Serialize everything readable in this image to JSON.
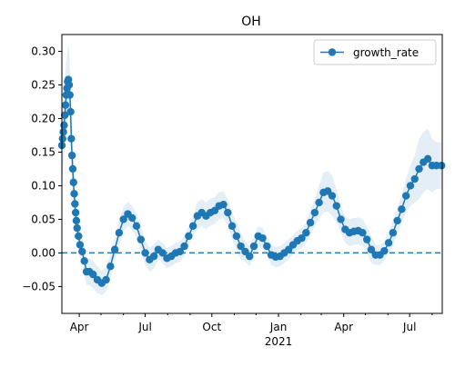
{
  "chart_data": {
    "type": "line",
    "title": "OH",
    "xlabel": "",
    "ylabel": "",
    "x_start": "2020-03-08",
    "x_end": "2021-08-15",
    "ylim": [
      -0.09,
      0.325
    ],
    "y_ticks": [
      -0.05,
      0.0,
      0.05,
      0.1,
      0.15,
      0.2,
      0.25,
      0.3
    ],
    "y_tick_labels": [
      "−0.05",
      "0.00",
      "0.05",
      "0.10",
      "0.15",
      "0.20",
      "0.25",
      "0.30"
    ],
    "x_major_ticks": [
      {
        "date": "2020-04-01",
        "label": "Apr"
      },
      {
        "date": "2020-07-01",
        "label": "Jul"
      },
      {
        "date": "2020-10-01",
        "label": "Oct"
      },
      {
        "date": "2021-01-01",
        "label": "Jan"
      },
      {
        "date": "2021-04-01",
        "label": "Apr"
      },
      {
        "date": "2021-07-01",
        "label": "Jul"
      }
    ],
    "x_year_label": {
      "date": "2021-01-01",
      "label": "2021"
    },
    "x_minor_ticks": [
      "2020-05-01",
      "2020-06-01",
      "2020-08-01",
      "2020-09-01",
      "2020-11-01",
      "2020-12-01",
      "2021-02-01",
      "2021-03-01",
      "2021-05-01",
      "2021-06-01",
      "2021-08-01"
    ],
    "reference_line": {
      "y": 0.0,
      "style": "dashed",
      "color": "#1f77b4"
    },
    "band_color": "#1f77b4",
    "legend": {
      "position": "top-right"
    },
    "series": [
      {
        "name": "growth_rate",
        "color": "#1f77b4",
        "marker": "circle",
        "x": [
          "2020-03-08",
          "2020-03-09",
          "2020-03-10",
          "2020-03-11",
          "2020-03-12",
          "2020-03-13",
          "2020-03-14",
          "2020-03-15",
          "2020-03-16",
          "2020-03-17",
          "2020-03-18",
          "2020-03-19",
          "2020-03-20",
          "2020-03-21",
          "2020-03-22",
          "2020-03-23",
          "2020-03-24",
          "2020-03-25",
          "2020-03-26",
          "2020-03-27",
          "2020-03-28",
          "2020-03-29",
          "2020-03-31",
          "2020-04-02",
          "2020-04-05",
          "2020-04-08",
          "2020-04-11",
          "2020-04-15",
          "2020-04-20",
          "2020-04-26",
          "2020-05-02",
          "2020-05-08",
          "2020-05-14",
          "2020-05-20",
          "2020-05-26",
          "2020-06-01",
          "2020-06-07",
          "2020-06-13",
          "2020-06-19",
          "2020-06-25",
          "2020-07-01",
          "2020-07-07",
          "2020-07-13",
          "2020-07-19",
          "2020-07-25",
          "2020-07-31",
          "2020-08-06",
          "2020-08-12",
          "2020-08-18",
          "2020-08-24",
          "2020-08-30",
          "2020-09-05",
          "2020-09-11",
          "2020-09-17",
          "2020-09-23",
          "2020-09-29",
          "2020-10-05",
          "2020-10-11",
          "2020-10-17",
          "2020-10-23",
          "2020-10-29",
          "2020-11-04",
          "2020-11-10",
          "2020-11-16",
          "2020-11-22",
          "2020-11-28",
          "2020-12-04",
          "2020-12-10",
          "2020-12-16",
          "2020-12-22",
          "2020-12-28",
          "2021-01-03",
          "2021-01-09",
          "2021-01-15",
          "2021-01-21",
          "2021-01-27",
          "2021-02-02",
          "2021-02-08",
          "2021-02-14",
          "2021-02-20",
          "2021-02-26",
          "2021-03-04",
          "2021-03-10",
          "2021-03-16",
          "2021-03-22",
          "2021-03-28",
          "2021-04-03",
          "2021-04-09",
          "2021-04-15",
          "2021-04-21",
          "2021-04-27",
          "2021-05-03",
          "2021-05-09",
          "2021-05-15",
          "2021-05-21",
          "2021-05-27",
          "2021-06-02",
          "2021-06-08",
          "2021-06-14",
          "2021-06-20",
          "2021-06-26",
          "2021-07-02",
          "2021-07-08",
          "2021-07-14",
          "2021-07-20",
          "2021-07-26",
          "2021-08-01",
          "2021-08-07",
          "2021-08-14"
        ],
        "y": [
          0.16,
          0.17,
          0.18,
          0.19,
          0.205,
          0.22,
          0.235,
          0.245,
          0.255,
          0.258,
          0.25,
          0.235,
          0.21,
          0.17,
          0.145,
          0.125,
          0.105,
          0.088,
          0.073,
          0.06,
          0.048,
          0.037,
          0.025,
          0.012,
          0.002,
          -0.012,
          -0.028,
          -0.028,
          -0.032,
          -0.04,
          -0.045,
          -0.04,
          -0.02,
          0.005,
          0.03,
          0.05,
          0.058,
          0.052,
          0.04,
          0.02,
          0.0,
          -0.01,
          -0.005,
          0.005,
          0.0,
          -0.008,
          -0.005,
          0.0,
          0.002,
          0.01,
          0.025,
          0.04,
          0.055,
          0.06,
          0.055,
          0.06,
          0.063,
          0.07,
          0.072,
          0.06,
          0.04,
          0.025,
          0.01,
          0.002,
          -0.005,
          0.01,
          0.025,
          0.022,
          0.01,
          -0.003,
          -0.006,
          -0.005,
          0.0,
          0.005,
          0.012,
          0.018,
          0.022,
          0.03,
          0.045,
          0.06,
          0.075,
          0.09,
          0.092,
          0.085,
          0.07,
          0.05,
          0.035,
          0.03,
          0.032,
          0.033,
          0.03,
          0.02,
          0.005,
          -0.003,
          -0.003,
          0.003,
          0.015,
          0.03,
          0.048,
          0.065,
          0.085,
          0.1,
          0.11,
          0.125,
          0.135,
          0.14,
          0.13,
          0.13,
          0.13
        ],
        "band_halfwidth": [
          0.05,
          0.05,
          0.05,
          0.05,
          0.05,
          0.05,
          0.05,
          0.05,
          0.05,
          0.05,
          0.05,
          0.045,
          0.045,
          0.04,
          0.04,
          0.035,
          0.035,
          0.03,
          0.03,
          0.028,
          0.025,
          0.022,
          0.02,
          0.02,
          0.02,
          0.02,
          0.02,
          0.02,
          0.02,
          0.02,
          0.018,
          0.018,
          0.018,
          0.018,
          0.018,
          0.018,
          0.018,
          0.018,
          0.018,
          0.018,
          0.018,
          0.018,
          0.018,
          0.015,
          0.015,
          0.015,
          0.015,
          0.015,
          0.015,
          0.015,
          0.015,
          0.015,
          0.02,
          0.02,
          0.02,
          0.02,
          0.02,
          0.02,
          0.02,
          0.02,
          0.02,
          0.02,
          0.02,
          0.015,
          0.015,
          0.015,
          0.015,
          0.015,
          0.015,
          0.015,
          0.015,
          0.015,
          0.015,
          0.015,
          0.015,
          0.015,
          0.015,
          0.015,
          0.02,
          0.02,
          0.025,
          0.03,
          0.03,
          0.03,
          0.025,
          0.02,
          0.02,
          0.02,
          0.02,
          0.02,
          0.02,
          0.02,
          0.02,
          0.015,
          0.015,
          0.015,
          0.015,
          0.02,
          0.02,
          0.02,
          0.025,
          0.03,
          0.035,
          0.045,
          0.045,
          0.045,
          0.04,
          0.035,
          0.035
        ]
      }
    ]
  }
}
